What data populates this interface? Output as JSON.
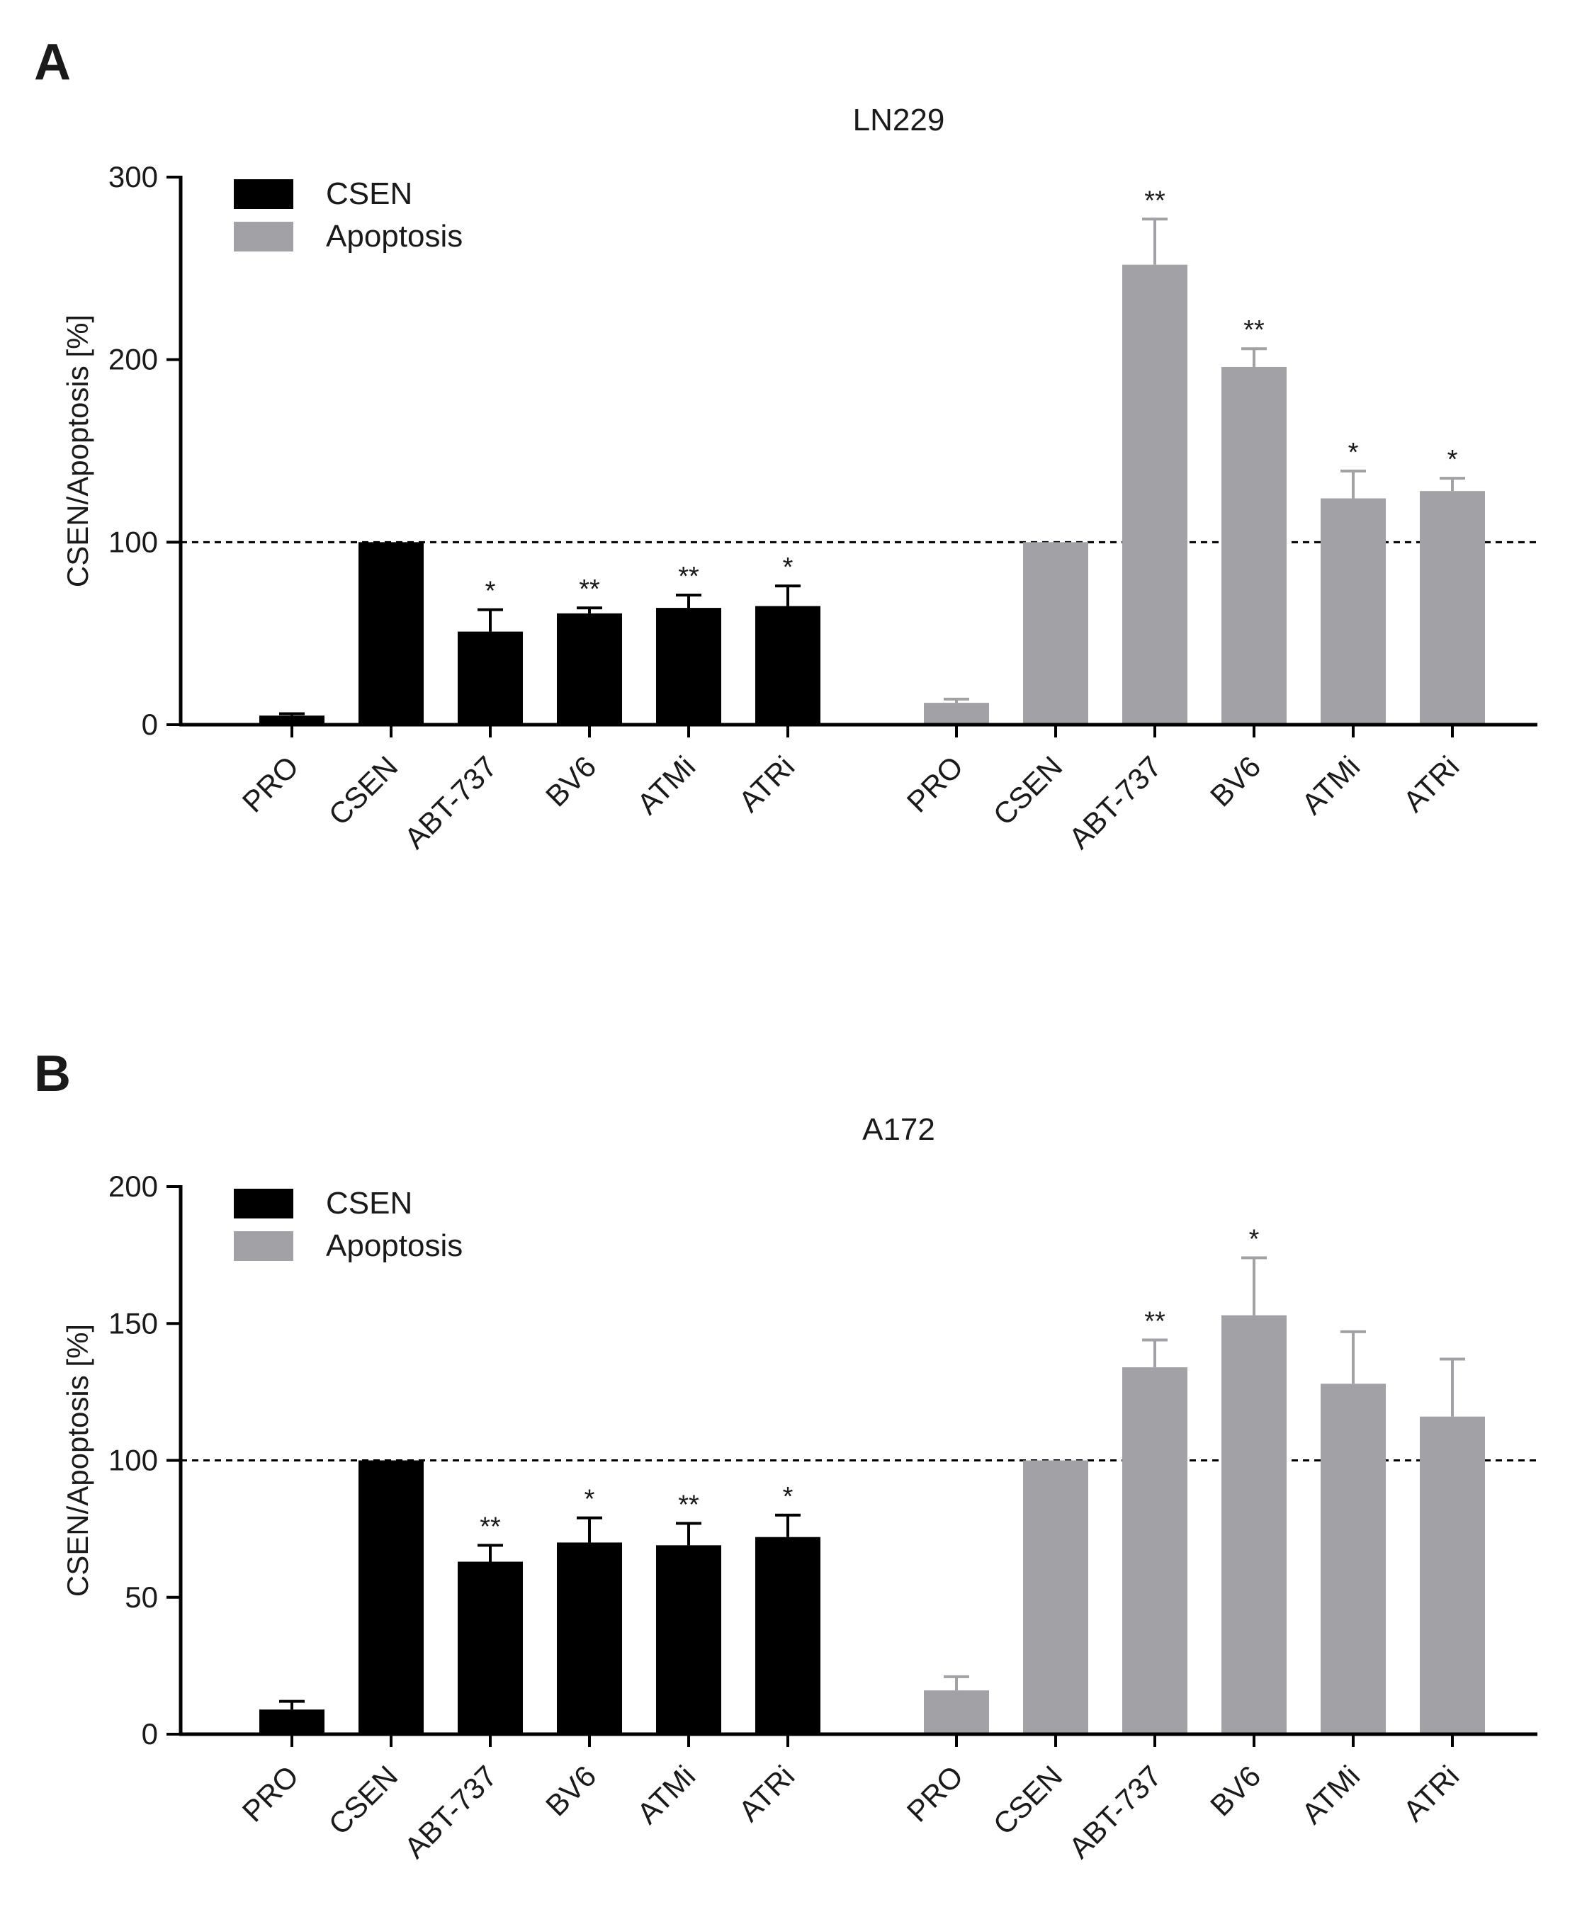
{
  "colors": {
    "csen": "#000000",
    "apoptosis": "#a2a2a6",
    "axis": "#000000",
    "text": "#1a1a1a"
  },
  "legend": {
    "items": [
      "CSEN",
      "Apoptosis"
    ],
    "placement": "top-left"
  },
  "reference_line": {
    "value": 100,
    "style": "dashed"
  },
  "chart_data": [
    {
      "panel": "A",
      "type": "bar",
      "title": "LN229",
      "ylabel": "CSEN/Apoptosis [%]",
      "ylim": [
        0,
        300
      ],
      "yticks": [
        0,
        100,
        200,
        300
      ],
      "categories": [
        "PRO",
        "CSEN",
        "ABT-737",
        "BV6",
        "ATMi",
        "ATRi"
      ],
      "grid": false,
      "series": [
        {
          "name": "CSEN",
          "values": [
            5,
            100,
            51,
            61,
            64,
            65
          ],
          "errors": [
            1,
            0,
            12,
            3,
            7,
            11
          ],
          "significance": [
            "",
            "",
            "*",
            "**",
            "**",
            "*"
          ]
        },
        {
          "name": "Apoptosis",
          "values": [
            12,
            100,
            252,
            196,
            124,
            128
          ],
          "errors": [
            2,
            0,
            25,
            10,
            15,
            7
          ],
          "significance": [
            "",
            "",
            "**",
            "**",
            "*",
            "*"
          ]
        }
      ]
    },
    {
      "panel": "B",
      "type": "bar",
      "title": "A172",
      "ylabel": "CSEN/Apoptosis [%]",
      "ylim": [
        0,
        200
      ],
      "yticks": [
        0,
        50,
        100,
        150,
        200
      ],
      "categories": [
        "PRO",
        "CSEN",
        "ABT-737",
        "BV6",
        "ATMi",
        "ATRi"
      ],
      "grid": false,
      "series": [
        {
          "name": "CSEN",
          "values": [
            9,
            100,
            63,
            70,
            69,
            72
          ],
          "errors": [
            3,
            0,
            6,
            9,
            8,
            8
          ],
          "significance": [
            "",
            "",
            "**",
            "*",
            "**",
            "*"
          ]
        },
        {
          "name": "Apoptosis",
          "values": [
            16,
            100,
            134,
            153,
            128,
            116
          ],
          "errors": [
            5,
            0,
            10,
            21,
            19,
            21
          ],
          "significance": [
            "",
            "",
            "**",
            "*",
            "",
            ""
          ]
        }
      ]
    }
  ]
}
